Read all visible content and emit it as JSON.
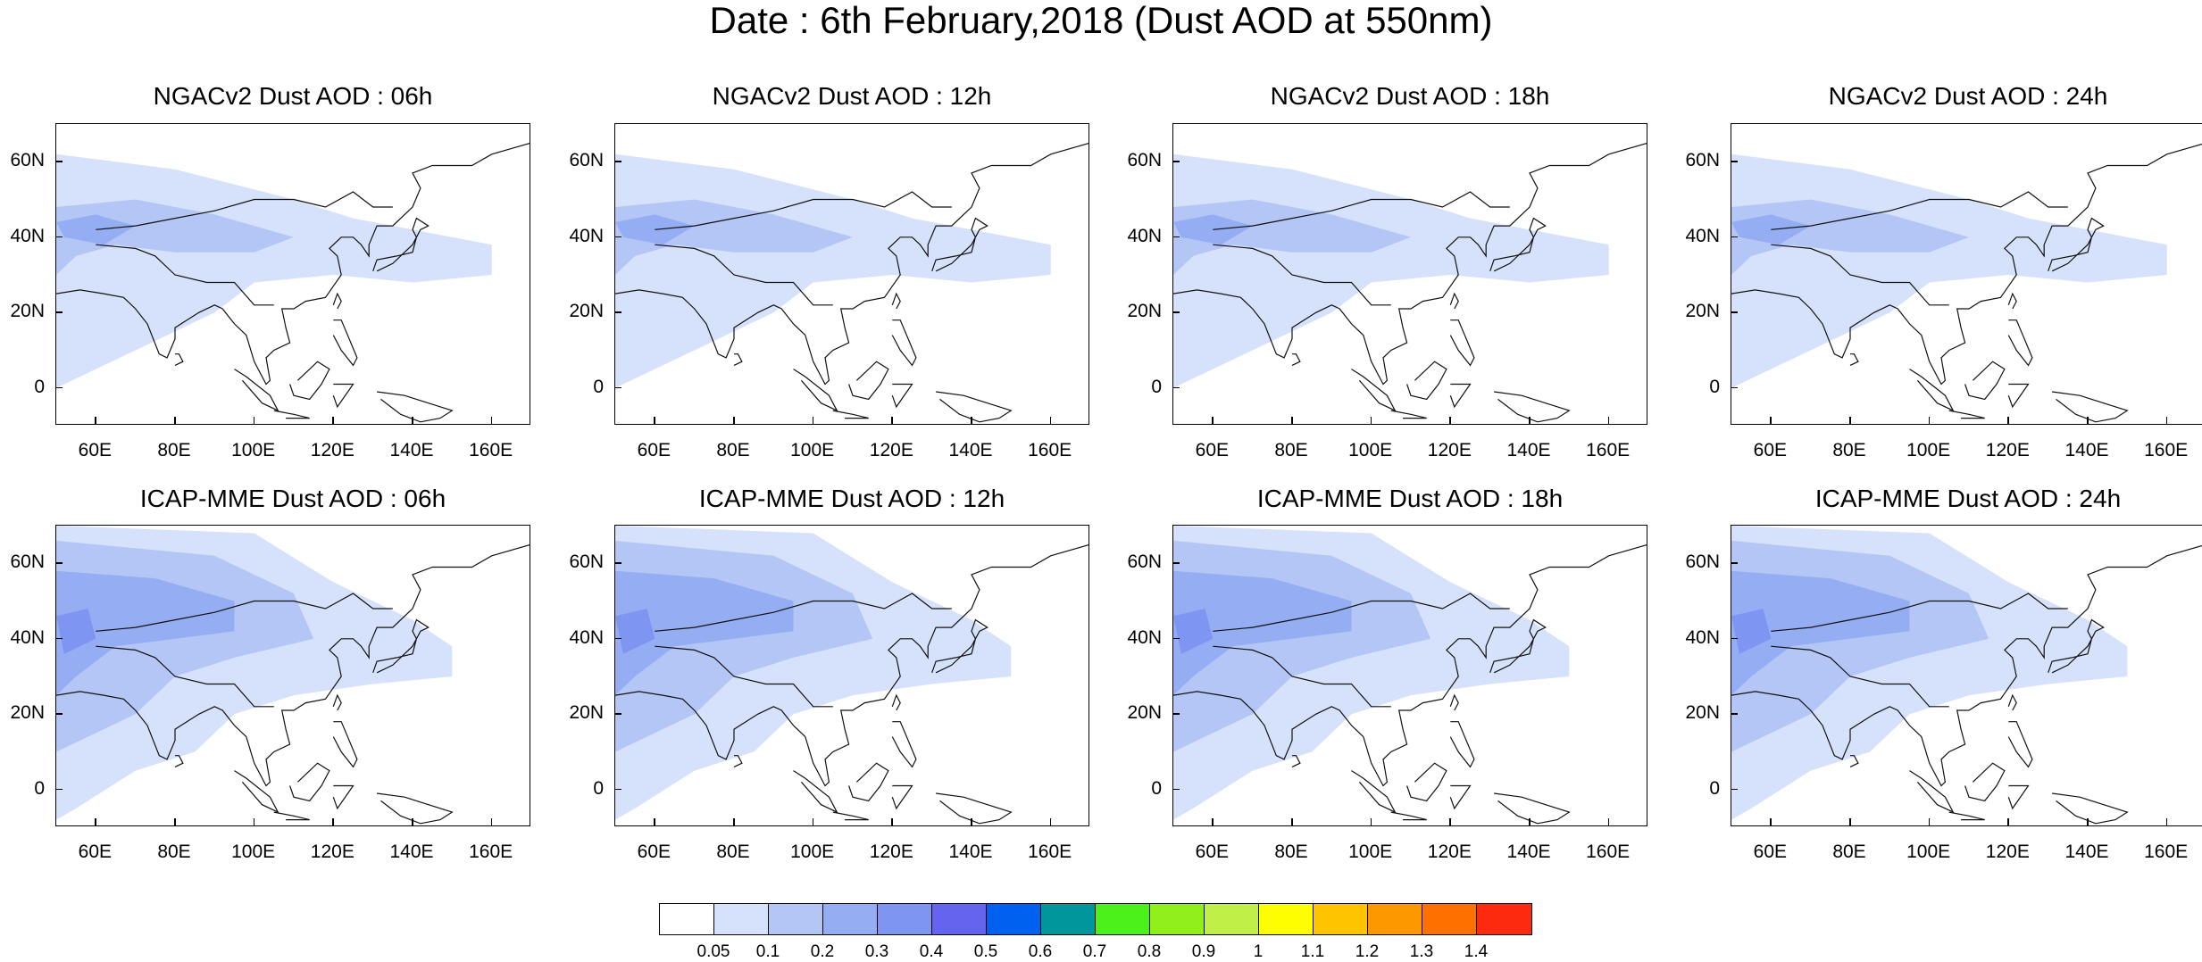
{
  "title": "Date : 6th February,2018 (Dust AOD at 550nm)",
  "panels": [
    {
      "title": "NGACv2 Dust AOD : 06h",
      "model": "NGACv2",
      "hour": "06h"
    },
    {
      "title": "NGACv2 Dust AOD : 12h",
      "model": "NGACv2",
      "hour": "12h"
    },
    {
      "title": "NGACv2 Dust AOD : 18h",
      "model": "NGACv2",
      "hour": "18h"
    },
    {
      "title": "NGACv2 Dust AOD : 24h",
      "model": "NGACv2",
      "hour": "24h"
    },
    {
      "title": "ICAP-MME Dust AOD : 06h",
      "model": "ICAP-MME",
      "hour": "06h"
    },
    {
      "title": "ICAP-MME Dust AOD : 12h",
      "model": "ICAP-MME",
      "hour": "12h"
    },
    {
      "title": "ICAP-MME Dust AOD : 18h",
      "model": "ICAP-MME",
      "hour": "18h"
    },
    {
      "title": "ICAP-MME Dust AOD : 24h",
      "model": "ICAP-MME",
      "hour": "24h"
    }
  ],
  "axes": {
    "lon_ticks": [
      "60E",
      "80E",
      "100E",
      "120E",
      "140E",
      "160E"
    ],
    "lon_values": [
      60,
      80,
      100,
      120,
      140,
      160
    ],
    "lat_ticks": [
      "60N",
      "40N",
      "20N",
      "0"
    ],
    "lat_values": [
      60,
      40,
      20,
      0
    ],
    "lon_range": [
      50,
      170
    ],
    "lat_range": [
      -10,
      70
    ]
  },
  "colorbar": {
    "labels": [
      "0.05",
      "0.1",
      "0.2",
      "0.3",
      "0.4",
      "0.5",
      "0.6",
      "0.7",
      "0.8",
      "0.9",
      "1",
      "1.1",
      "1.2",
      "1.3",
      "1.4"
    ],
    "colors": [
      "#ffffff",
      "#d6e2fb",
      "#b4c6f6",
      "#95aef3",
      "#7e95f1",
      "#6464ee",
      "#0060f0",
      "#00969c",
      "#4cf01a",
      "#90ee1a",
      "#c0f048",
      "#fefe00",
      "#fec400",
      "#fe9800",
      "#fe7000",
      "#fe2a10"
    ]
  }
}
